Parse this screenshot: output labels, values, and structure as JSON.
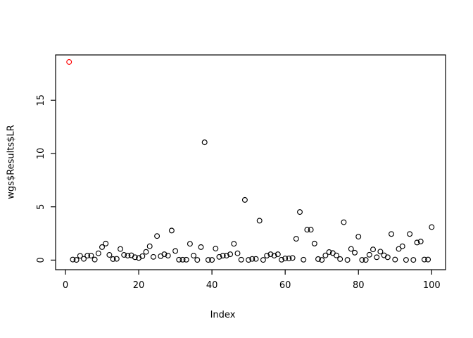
{
  "colors": {
    "background": "#ffffff",
    "axis": "#000000",
    "point_default": "#000000",
    "point_highlight": "#FF0000",
    "text": "#000000"
  },
  "chart_data": {
    "type": "scatter",
    "title": "",
    "xlabel": "Index",
    "ylabel": "wgs$Results$LR",
    "xticks": [
      0,
      20,
      40,
      60,
      80,
      100
    ],
    "yticks": [
      0,
      5,
      10,
      15
    ],
    "xlim": [
      -2.69,
      103.79
    ],
    "ylim": [
      -0.9,
      19.25
    ],
    "grid": false,
    "legend": "none",
    "marker": "open-circle",
    "highlight_x": 1,
    "x": [
      1,
      2,
      3,
      4,
      5,
      6,
      7,
      8,
      9,
      10,
      11,
      12,
      13,
      14,
      15,
      16,
      17,
      18,
      19,
      20,
      21,
      22,
      23,
      24,
      25,
      26,
      27,
      28,
      29,
      30,
      31,
      32,
      33,
      34,
      35,
      36,
      37,
      38,
      39,
      40,
      41,
      42,
      43,
      44,
      45,
      46,
      47,
      48,
      49,
      50,
      51,
      52,
      53,
      54,
      55,
      56,
      57,
      58,
      59,
      60,
      61,
      62,
      63,
      64,
      65,
      66,
      67,
      68,
      69,
      70,
      71,
      72,
      73,
      74,
      75,
      76,
      77,
      78,
      79,
      80,
      81,
      82,
      83,
      84,
      85,
      86,
      87,
      88,
      89,
      90,
      91,
      92,
      93,
      94,
      95,
      96,
      97,
      98,
      99,
      100
    ],
    "y": [
      18.59,
      0.05,
      0.02,
      0.4,
      0.12,
      0.42,
      0.42,
      0.05,
      0.64,
      1.22,
      1.55,
      0.49,
      0.1,
      0.12,
      1.04,
      0.49,
      0.42,
      0.45,
      0.27,
      0.2,
      0.37,
      0.77,
      1.3,
      0.3,
      2.26,
      0.37,
      0.55,
      0.42,
      2.77,
      0.86,
      0.04,
      0.04,
      0.04,
      1.53,
      0.42,
      0.02,
      1.22,
      11.05,
      0.02,
      0.02,
      1.08,
      0.3,
      0.42,
      0.42,
      0.55,
      1.53,
      0.64,
      0.04,
      5.65,
      0.02,
      0.11,
      0.11,
      3.7,
      0.02,
      0.42,
      0.55,
      0.42,
      0.55,
      0.04,
      0.16,
      0.16,
      0.2,
      2.0,
      4.51,
      0.04,
      2.85,
      2.85,
      1.55,
      0.1,
      0.02,
      0.44,
      0.75,
      0.66,
      0.44,
      0.1,
      3.55,
      0.02,
      1.05,
      0.7,
      2.2,
      0.02,
      0.02,
      0.5,
      1.0,
      0.27,
      0.8,
      0.45,
      0.27,
      2.45,
      0.05,
      1.05,
      1.3,
      0.02,
      2.45,
      0.02,
      1.65,
      1.75,
      0.05,
      0.05,
      3.1
    ]
  }
}
